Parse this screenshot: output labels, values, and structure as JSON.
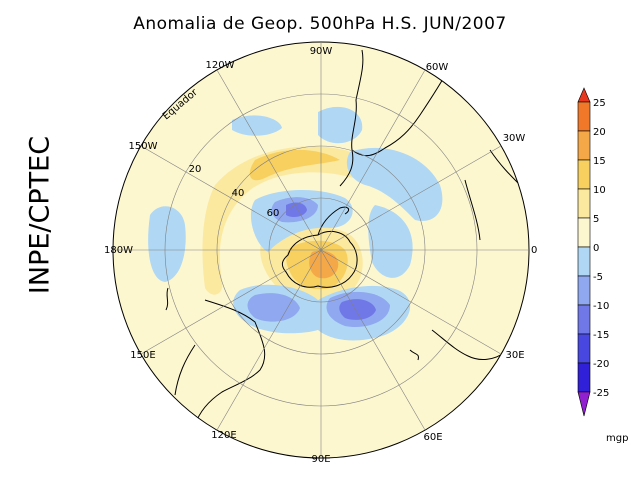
{
  "title": "Anomalia de Geop. 500hPa H.S. JUN/2007",
  "side_label": "INPE/CPTEC",
  "longitude_labels": {
    "w90": "90W",
    "w60": "60W",
    "w30": "30W",
    "e0": "0",
    "e30": "30E",
    "e60": "60E",
    "e90": "90E",
    "e120": "120E",
    "e150": "150E",
    "w180": "180W",
    "w150": "150W",
    "w120": "120W"
  },
  "latitude_labels": {
    "equator": "Equador",
    "lat20": "20",
    "lat40": "40",
    "lat60": "60"
  },
  "colorbar": {
    "unit": "mgp",
    "ticks": [
      "25",
      "20",
      "15",
      "10",
      "5",
      "0",
      "-5",
      "-10",
      "-15",
      "-20",
      "-25"
    ],
    "colors": [
      "#e83820",
      "#f07828",
      "#f5a848",
      "#f7d060",
      "#fbe9a0",
      "#fdf7d0",
      "#b0d8f4",
      "#90a8f0",
      "#7078e8",
      "#4848e0",
      "#3020d8",
      "#9020d0"
    ]
  }
}
